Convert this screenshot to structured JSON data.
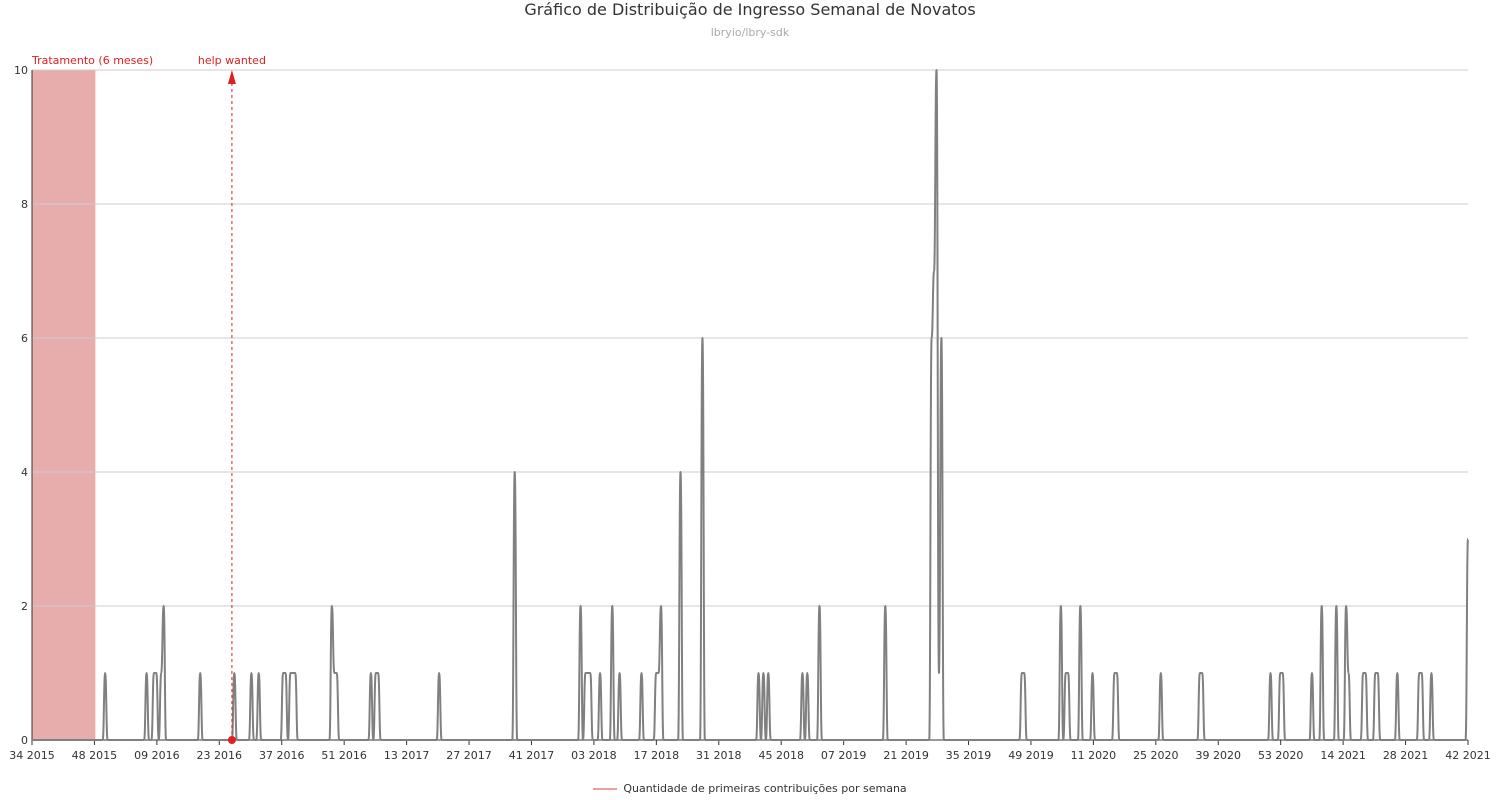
{
  "chart_data": {
    "type": "line",
    "title": "Gráfico de Distribuição de Ingresso Semanal de Novatos",
    "subtitle": "lbryio/lbry-sdk",
    "x_tick_labels": [
      "34 2015",
      "48 2015",
      "09 2016",
      "23 2016",
      "37 2016",
      "51 2016",
      "13 2017",
      "27 2017",
      "41 2017",
      "03 2018",
      "17 2018",
      "31 2018",
      "45 2018",
      "07 2019",
      "21 2019",
      "35 2019",
      "49 2019",
      "11 2020",
      "25 2020",
      "39 2020",
      "53 2020",
      "14 2021",
      "28 2021",
      "42 2021"
    ],
    "y_ticks": [
      0,
      2,
      4,
      6,
      8,
      10
    ],
    "ylim": [
      0,
      10
    ],
    "grid": "horizontal",
    "legend_position": "bottom",
    "series": [
      {
        "name": "Quantidade de primeiras contribuições por semana",
        "color": "#808080",
        "values": [
          0,
          0,
          0,
          0,
          0,
          0,
          0,
          0,
          0,
          0,
          0,
          0,
          0,
          0,
          0,
          0,
          0,
          0,
          0,
          0,
          0,
          0,
          0,
          0,
          0,
          0,
          0,
          0,
          0,
          0,
          1,
          0,
          0,
          0,
          0,
          0,
          0,
          0,
          0,
          0,
          0,
          0,
          0,
          0,
          0,
          0,
          0,
          1,
          0,
          0,
          1,
          1,
          0,
          1,
          2,
          0,
          0,
          0,
          0,
          0,
          0,
          0,
          0,
          0,
          0,
          0,
          0,
          0,
          0,
          1,
          0,
          0,
          0,
          0,
          0,
          0,
          0,
          0,
          0,
          0,
          0,
          0,
          0,
          1,
          0,
          0,
          0,
          0,
          0,
          0,
          1,
          0,
          0,
          1,
          0,
          0,
          0,
          0,
          0,
          0,
          0,
          0,
          0,
          1,
          1,
          0,
          1,
          1,
          1,
          0,
          0,
          0,
          0,
          0,
          0,
          0,
          0,
          0,
          0,
          0,
          0,
          0,
          0,
          2,
          1,
          1,
          0,
          0,
          0,
          0,
          0,
          0,
          0,
          0,
          0,
          0,
          0,
          0,
          0,
          1,
          0,
          1,
          1,
          0,
          0,
          0,
          0,
          0,
          0,
          0,
          0,
          0,
          0,
          0,
          0,
          0,
          0,
          0,
          0,
          0,
          0,
          0,
          0,
          0,
          0,
          0,
          0,
          1,
          0,
          0,
          0,
          0,
          0,
          0,
          0,
          0,
          0,
          0,
          0,
          0,
          0,
          0,
          0,
          0,
          0,
          0,
          0,
          0,
          0,
          0,
          0,
          0,
          0,
          0,
          0,
          0,
          0,
          0,
          4,
          0,
          0,
          0,
          0,
          0,
          0,
          0,
          0,
          0,
          0,
          0,
          0,
          0,
          0,
          0,
          0,
          0,
          0,
          0,
          0,
          0,
          0,
          0,
          0,
          0,
          0,
          2,
          0,
          1,
          1,
          1,
          0,
          0,
          0,
          1,
          0,
          0,
          0,
          0,
          2,
          0,
          0,
          1,
          0,
          0,
          0,
          0,
          0,
          0,
          0,
          0,
          1,
          0,
          0,
          0,
          0,
          0,
          1,
          1,
          2,
          0,
          0,
          0,
          0,
          0,
          0,
          0,
          4,
          0,
          0,
          0,
          0,
          0,
          0,
          0,
          0,
          6,
          0,
          0,
          0,
          0,
          0,
          0,
          0,
          0,
          0,
          0,
          0,
          0,
          0,
          0,
          0,
          0,
          0,
          0,
          0,
          0,
          0,
          0,
          1,
          0,
          1,
          0,
          1,
          0,
          0,
          0,
          0,
          0,
          0,
          0,
          0,
          0,
          0,
          0,
          0,
          0,
          1,
          0,
          1,
          0,
          0,
          0,
          0,
          2,
          0,
          0,
          0,
          0,
          0,
          0,
          0,
          0,
          0,
          0,
          0,
          0,
          0,
          0,
          0,
          0,
          0,
          0,
          0,
          0,
          0,
          0,
          0,
          0,
          0,
          0,
          2,
          0,
          0,
          0,
          0,
          0,
          0,
          0,
          0,
          0,
          0,
          0,
          0,
          0,
          0,
          0,
          0,
          0,
          0,
          6,
          7,
          10,
          1,
          6,
          0,
          0,
          0,
          0,
          0,
          0,
          0,
          0,
          0,
          0,
          0,
          0,
          0,
          0,
          0,
          0,
          0,
          0,
          0,
          0,
          0,
          0,
          0,
          0,
          0,
          0,
          0,
          0,
          0,
          0,
          0,
          0,
          1,
          1,
          0,
          0,
          0,
          0,
          0,
          0,
          0,
          0,
          0,
          0,
          0,
          0,
          0,
          0,
          2,
          0,
          1,
          1,
          0,
          0,
          0,
          0,
          2,
          0,
          0,
          0,
          0,
          1,
          0,
          0,
          0,
          0,
          0,
          0,
          0,
          0,
          1,
          1,
          0,
          0,
          0,
          0,
          0,
          0,
          0,
          0,
          0,
          0,
          0,
          0,
          0,
          0,
          0,
          0,
          0,
          1,
          0,
          0,
          0,
          0,
          0,
          0,
          0,
          0,
          0,
          0,
          0,
          0,
          0,
          0,
          0,
          1,
          1,
          0,
          0,
          0,
          0,
          0,
          0,
          0,
          0,
          0,
          0,
          0,
          0,
          0,
          0,
          0,
          0,
          0,
          0,
          0,
          0,
          0,
          0,
          0,
          0,
          0,
          0,
          0,
          1,
          0,
          0,
          0,
          1,
          1,
          0,
          0,
          0,
          0,
          0,
          0,
          0,
          0,
          0,
          0,
          0,
          1,
          0,
          0,
          0,
          2,
          0,
          0,
          0,
          0,
          0,
          2,
          0,
          0,
          0,
          2,
          1,
          0,
          0,
          0,
          0,
          0,
          1,
          1,
          0,
          0,
          0,
          1,
          1,
          0,
          0,
          0,
          0,
          0,
          0,
          0,
          1,
          0,
          0,
          0,
          0,
          0,
          0,
          0,
          0,
          1,
          1,
          0,
          0,
          0,
          1,
          0,
          0,
          0,
          0,
          0,
          0,
          0,
          0,
          0,
          0,
          0,
          0,
          0,
          0,
          3
        ]
      }
    ],
    "annotations": [
      {
        "type": "band",
        "label": "Tratamento (6 meses)",
        "start_index": 0,
        "end_index": 26,
        "color": "#d46a6a"
      },
      {
        "type": "marker",
        "label": "help wanted",
        "index": 82,
        "color": "#e02020"
      }
    ]
  }
}
